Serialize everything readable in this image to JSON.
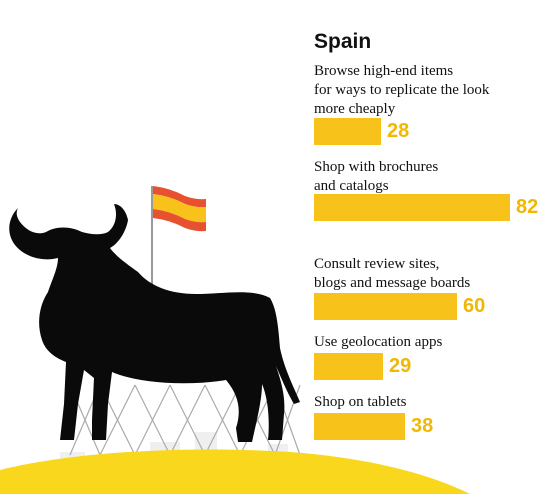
{
  "colors": {
    "bar": "#f7c21a",
    "value_text": "#f2b705",
    "bull": "#0a0a0a",
    "hill": "#f9d71c",
    "flag_red": "#e8512f",
    "flag_yellow": "#f7c21a"
  },
  "chart_data": {
    "type": "bar",
    "orientation": "horizontal",
    "title": "Spain",
    "categories": [
      "Browse high-end items\nfor ways to replicate the look\nmore cheaply",
      "Shop with brochures\nand catalogs",
      "Consult review sites,\nblogs and message boards",
      "Use geolocation apps",
      "Shop on tablets"
    ],
    "values": [
      28,
      82,
      60,
      29,
      38
    ],
    "xlim": [
      0,
      82
    ],
    "grid": false,
    "legend": "none"
  }
}
